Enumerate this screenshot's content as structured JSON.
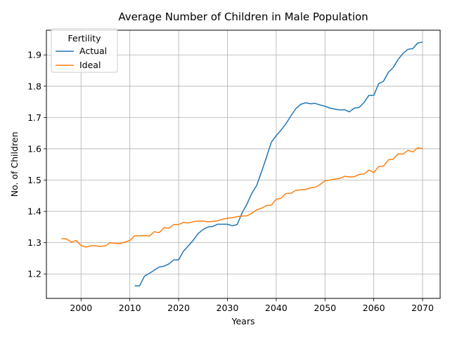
{
  "chart_data": {
    "type": "line",
    "title": "Average Number of Children in Male Population",
    "xlabel": "Years",
    "ylabel": "No. of Children",
    "xlim": [
      1992.9,
      2073.6
    ],
    "ylim": [
      1.122,
      1.979
    ],
    "x_ticks": [
      2000,
      2010,
      2020,
      2030,
      2040,
      2050,
      2060,
      2070
    ],
    "y_ticks": [
      1.2,
      1.3,
      1.4,
      1.5,
      1.6,
      1.7,
      1.8,
      1.9
    ],
    "grid": true,
    "legend": {
      "title": "Fertility",
      "placement": "top-left"
    },
    "series": [
      {
        "name": "Actual",
        "color": "#1f77b4",
        "x": [
          2011,
          2012,
          2013,
          2014,
          2015,
          2016,
          2017,
          2018,
          2019,
          2020,
          2021,
          2022,
          2023,
          2024,
          2025,
          2026,
          2027,
          2028,
          2029,
          2030,
          2031,
          2032,
          2033,
          2034,
          2035,
          2036,
          2037,
          2038,
          2039,
          2040,
          2041,
          2042,
          2043,
          2044,
          2045,
          2046,
          2047,
          2048,
          2049,
          2050,
          2051,
          2052,
          2053,
          2054,
          2055,
          2056,
          2057,
          2058,
          2059,
          2060,
          2061,
          2062,
          2063,
          2064,
          2065,
          2066,
          2067,
          2068,
          2069,
          2070
        ],
        "y": [
          1.162,
          1.162,
          1.193,
          1.202,
          1.212,
          1.222,
          1.225,
          1.232,
          1.245,
          1.245,
          1.273,
          1.29,
          1.308,
          1.329,
          1.342,
          1.35,
          1.352,
          1.359,
          1.359,
          1.359,
          1.354,
          1.358,
          1.395,
          1.423,
          1.458,
          1.483,
          1.527,
          1.573,
          1.621,
          1.642,
          1.66,
          1.68,
          1.705,
          1.728,
          1.742,
          1.747,
          1.744,
          1.745,
          1.74,
          1.736,
          1.73,
          1.727,
          1.724,
          1.725,
          1.718,
          1.73,
          1.732,
          1.748,
          1.771,
          1.771,
          1.808,
          1.816,
          1.845,
          1.86,
          1.886,
          1.905,
          1.918,
          1.92,
          1.938,
          1.941
        ]
      },
      {
        "name": "Ideal",
        "color": "#ff7f0e",
        "x": [
          1996,
          1997,
          1998,
          1999,
          2000,
          2001,
          2002,
          2003,
          2004,
          2005,
          2006,
          2007,
          2008,
          2009,
          2010,
          2011,
          2012,
          2013,
          2014,
          2015,
          2016,
          2017,
          2018,
          2019,
          2020,
          2021,
          2022,
          2023,
          2024,
          2025,
          2026,
          2027,
          2028,
          2029,
          2030,
          2031,
          2032,
          2033,
          2034,
          2035,
          2036,
          2037,
          2038,
          2039,
          2040,
          2041,
          2042,
          2043,
          2044,
          2045,
          2046,
          2047,
          2048,
          2049,
          2050,
          2051,
          2052,
          2053,
          2054,
          2055,
          2056,
          2057,
          2058,
          2059,
          2060,
          2061,
          2062,
          2063,
          2064,
          2065,
          2066,
          2067,
          2068,
          2069,
          2070
        ],
        "y": [
          1.313,
          1.312,
          1.302,
          1.307,
          1.291,
          1.286,
          1.29,
          1.29,
          1.288,
          1.29,
          1.3,
          1.298,
          1.297,
          1.302,
          1.307,
          1.322,
          1.322,
          1.323,
          1.321,
          1.335,
          1.332,
          1.348,
          1.346,
          1.358,
          1.358,
          1.365,
          1.363,
          1.367,
          1.369,
          1.369,
          1.367,
          1.368,
          1.37,
          1.375,
          1.378,
          1.38,
          1.383,
          1.385,
          1.386,
          1.394,
          1.405,
          1.41,
          1.419,
          1.42,
          1.439,
          1.442,
          1.457,
          1.458,
          1.467,
          1.469,
          1.47,
          1.475,
          1.477,
          1.486,
          1.498,
          1.5,
          1.503,
          1.505,
          1.512,
          1.51,
          1.511,
          1.518,
          1.519,
          1.532,
          1.524,
          1.543,
          1.545,
          1.565,
          1.567,
          1.584,
          1.583,
          1.595,
          1.59,
          1.603,
          1.601
        ]
      }
    ]
  }
}
